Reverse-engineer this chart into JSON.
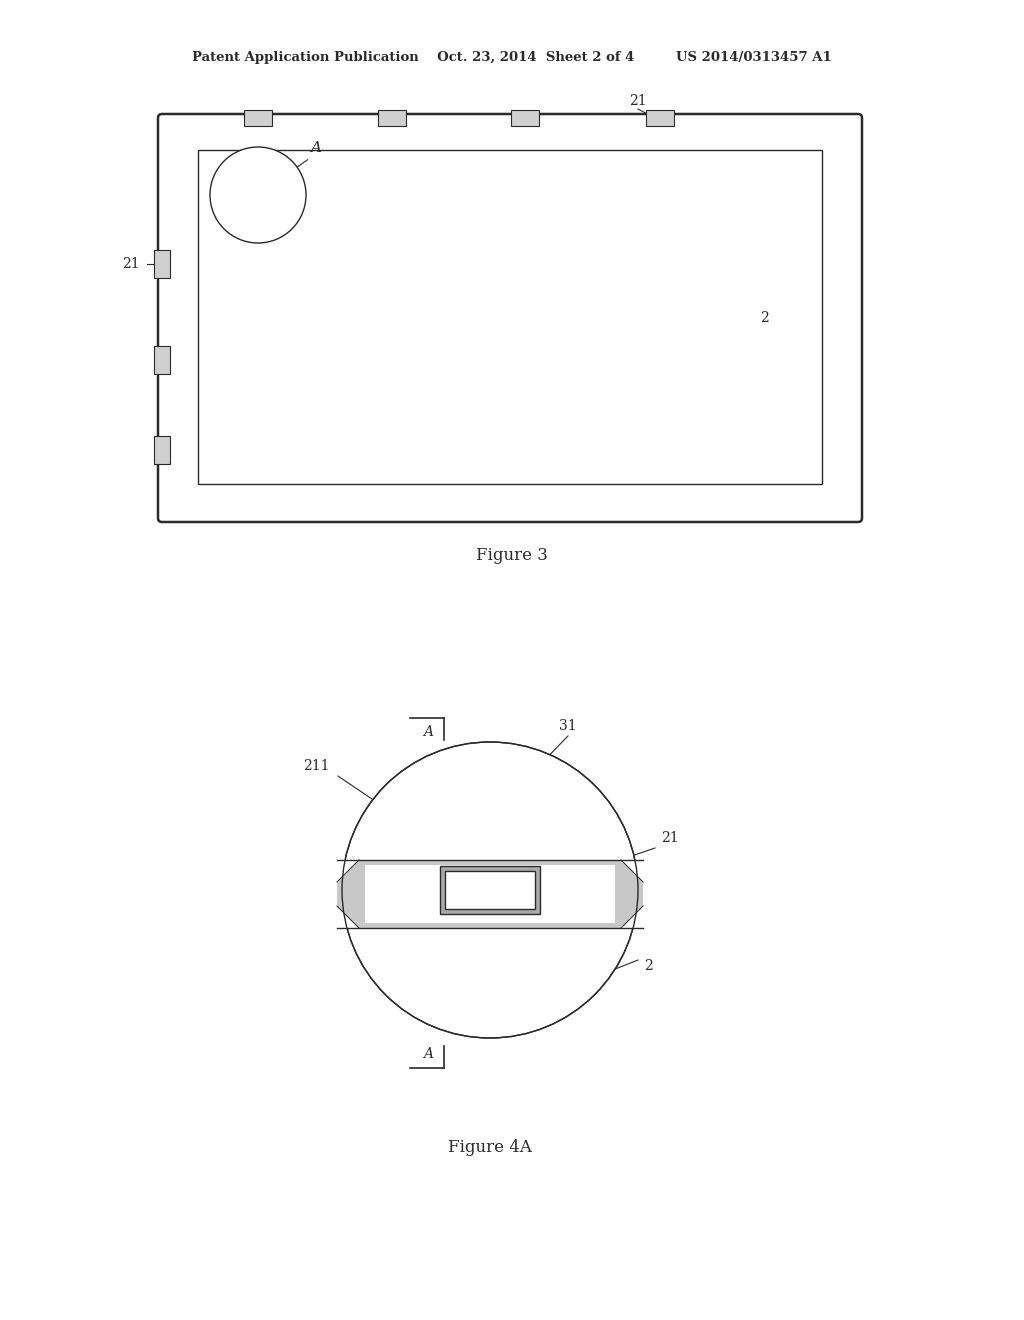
{
  "bg_color": "#ffffff",
  "line_color": "#2a2a2a",
  "header": "Patent Application Publication    Oct. 23, 2014  Sheet 2 of 4         US 2014/0313457 A1",
  "fig3_caption": "Figure 3",
  "fig4a_caption": "Figure 4A"
}
